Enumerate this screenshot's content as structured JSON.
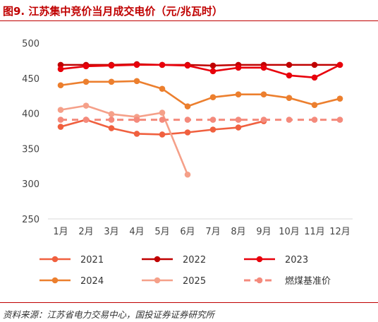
{
  "header": {
    "title": "图9. 江苏集中竞价当月成交电价（元/兆瓦时）"
  },
  "footer": {
    "source": "资料来源：江苏省电力交易中心，国投证券证券研究所"
  },
  "chart_data": {
    "type": "line",
    "title": "图9. 江苏集中竞价当月成交电价（元/兆瓦时）",
    "xlabel": "",
    "ylabel": "",
    "categories": [
      "1月",
      "2月",
      "3月",
      "4月",
      "5月",
      "6月",
      "7月",
      "8月",
      "9月",
      "10月",
      "11月",
      "12月"
    ],
    "ylim": [
      250,
      500
    ],
    "yticks": [
      250,
      300,
      350,
      400,
      450,
      500
    ],
    "grid": false,
    "legend_position": "bottom",
    "series": [
      {
        "name": "2021",
        "color": "#f0603f",
        "dashed": false,
        "values": [
          381,
          391,
          379,
          371,
          370,
          373,
          377,
          380,
          389,
          null,
          null,
          null
        ]
      },
      {
        "name": "2022",
        "color": "#c00000",
        "dashed": false,
        "values": [
          469,
          469,
          469,
          470,
          469,
          469,
          468,
          469,
          469,
          469,
          469,
          469
        ]
      },
      {
        "name": "2023",
        "color": "#e8000b",
        "dashed": false,
        "values": [
          463,
          467,
          468,
          469,
          469,
          468,
          460,
          465,
          465,
          454,
          451,
          469
        ]
      },
      {
        "name": "2024",
        "color": "#ec7f2e",
        "dashed": false,
        "values": [
          440,
          445,
          445,
          446,
          435,
          410,
          423,
          427,
          427,
          422,
          412,
          421
        ]
      },
      {
        "name": "2025",
        "color": "#f5a089",
        "dashed": false,
        "values": [
          405,
          411,
          399,
          395,
          401,
          313,
          null,
          null,
          null,
          null,
          null,
          null
        ]
      },
      {
        "name": "燃煤基准价",
        "color": "#f48a7c",
        "dashed": true,
        "values": [
          391,
          391,
          391,
          391,
          391,
          391,
          391,
          391,
          391,
          391,
          391,
          391
        ]
      }
    ]
  }
}
